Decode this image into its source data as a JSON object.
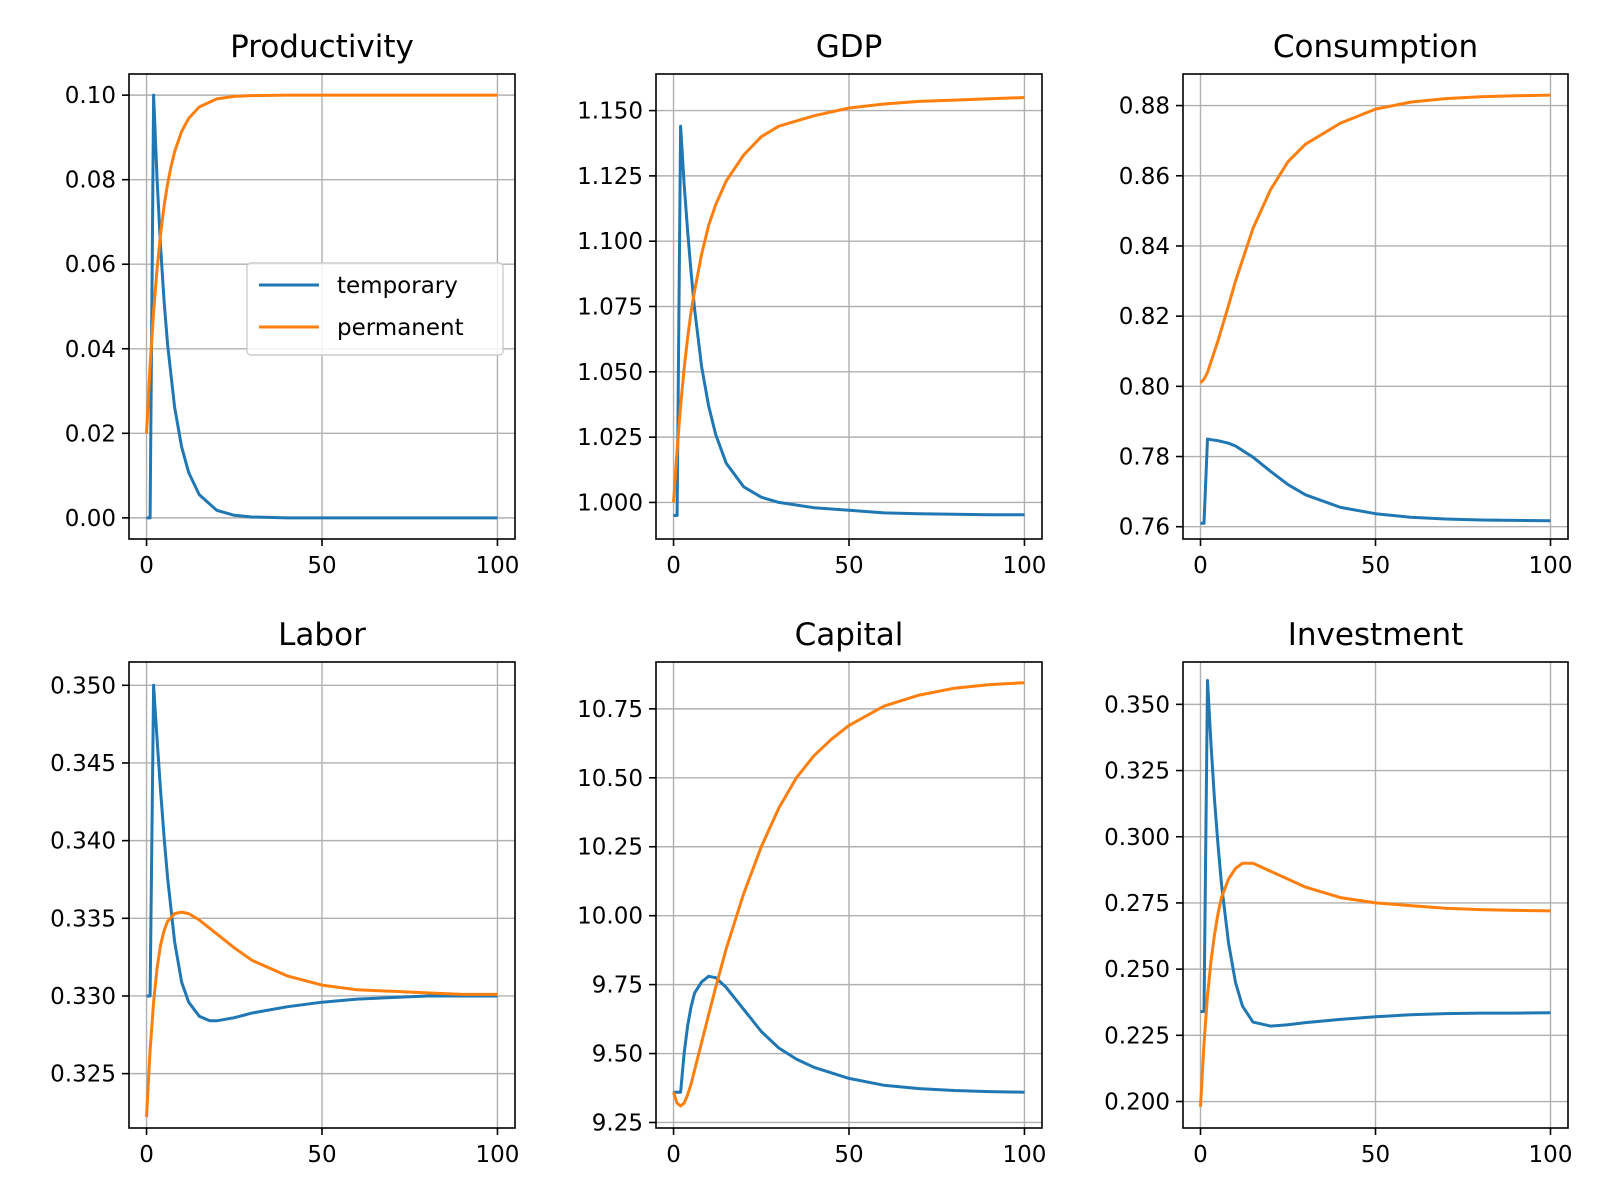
{
  "colors": {
    "temporary": "#1f77b4",
    "permanent": "#ff7f0e",
    "grid": "#b0b0b0"
  },
  "chart_data": [
    {
      "type": "line",
      "title": "Productivity",
      "xlim": [
        -5,
        105
      ],
      "ylim": [
        -0.005,
        0.105
      ],
      "xticks": [
        0,
        50,
        100
      ],
      "yticks": [
        0.0,
        0.02,
        0.04,
        0.06,
        0.08,
        0.1
      ],
      "ytick_labels": [
        "0.00",
        "0.02",
        "0.04",
        "0.06",
        "0.08",
        "0.10"
      ],
      "grid": true,
      "legend": {
        "location": "center-right",
        "entries": [
          "temporary",
          "permanent"
        ]
      },
      "series": [
        {
          "name": "temporary",
          "x": [
            0,
            1,
            2,
            3,
            4,
            5,
            6,
            8,
            10,
            12,
            15,
            20,
            25,
            30,
            40,
            50,
            60,
            70,
            80,
            90,
            100
          ],
          "y": [
            0.0,
            0.0,
            0.1,
            0.08,
            0.064,
            0.0512,
            0.041,
            0.0262,
            0.0168,
            0.0107,
            0.0055,
            0.0018,
            0.0006,
            0.0002,
            0.0,
            0.0,
            0.0,
            0.0,
            0.0,
            0.0,
            0.0
          ]
        },
        {
          "name": "permanent",
          "x": [
            0,
            1,
            2,
            3,
            4,
            5,
            6,
            7,
            8,
            10,
            12,
            15,
            20,
            25,
            30,
            40,
            50,
            60,
            70,
            80,
            90,
            100
          ],
          "y": [
            0.02,
            0.036,
            0.0488,
            0.059,
            0.0672,
            0.0738,
            0.079,
            0.0832,
            0.0866,
            0.0914,
            0.0945,
            0.0972,
            0.0991,
            0.0997,
            0.0999,
            0.1,
            0.1,
            0.1,
            0.1,
            0.1,
            0.1,
            0.1
          ]
        }
      ]
    },
    {
      "type": "line",
      "title": "GDP",
      "xlim": [
        -5,
        105
      ],
      "ylim": [
        0.986,
        1.164
      ],
      "xticks": [
        0,
        50,
        100
      ],
      "yticks": [
        1.0,
        1.025,
        1.05,
        1.075,
        1.1,
        1.125,
        1.15
      ],
      "ytick_labels": [
        "1.000",
        "1.025",
        "1.050",
        "1.075",
        "1.100",
        "1.125",
        "1.150"
      ],
      "grid": true,
      "series": [
        {
          "name": "temporary",
          "x": [
            0,
            1,
            2,
            3,
            4,
            5,
            6,
            8,
            10,
            12,
            15,
            20,
            25,
            30,
            40,
            50,
            60,
            70,
            80,
            90,
            100
          ],
          "y": [
            0.995,
            0.995,
            1.144,
            1.122,
            1.104,
            1.088,
            1.074,
            1.052,
            1.037,
            1.026,
            1.015,
            1.006,
            1.002,
            1.0,
            0.998,
            0.997,
            0.996,
            0.9957,
            0.9955,
            0.9953,
            0.9953
          ]
        },
        {
          "name": "permanent",
          "x": [
            0,
            1,
            2,
            3,
            4,
            5,
            6,
            8,
            10,
            12,
            15,
            20,
            25,
            30,
            40,
            50,
            60,
            70,
            80,
            90,
            100
          ],
          "y": [
            1.0,
            1.02,
            1.037,
            1.051,
            1.063,
            1.073,
            1.081,
            1.095,
            1.106,
            1.114,
            1.123,
            1.133,
            1.14,
            1.144,
            1.148,
            1.151,
            1.1525,
            1.1535,
            1.154,
            1.1545,
            1.155
          ]
        }
      ]
    },
    {
      "type": "line",
      "title": "Consumption",
      "xlim": [
        -5,
        105
      ],
      "ylim": [
        0.7565,
        0.889
      ],
      "xticks": [
        0,
        50,
        100
      ],
      "yticks": [
        0.76,
        0.78,
        0.8,
        0.82,
        0.84,
        0.86,
        0.88
      ],
      "ytick_labels": [
        "0.76",
        "0.78",
        "0.80",
        "0.82",
        "0.84",
        "0.86",
        "0.88"
      ],
      "grid": true,
      "series": [
        {
          "name": "temporary",
          "x": [
            0,
            1,
            2,
            3,
            5,
            8,
            10,
            15,
            20,
            25,
            30,
            40,
            50,
            60,
            70,
            80,
            90,
            100
          ],
          "y": [
            0.761,
            0.761,
            0.785,
            0.7848,
            0.7845,
            0.7838,
            0.783,
            0.7798,
            0.7758,
            0.772,
            0.7691,
            0.7655,
            0.7637,
            0.7627,
            0.7622,
            0.7619,
            0.7618,
            0.7617
          ]
        },
        {
          "name": "permanent",
          "x": [
            0,
            1,
            2,
            3,
            5,
            8,
            10,
            15,
            20,
            25,
            30,
            40,
            50,
            60,
            70,
            80,
            90,
            100
          ],
          "y": [
            0.801,
            0.802,
            0.804,
            0.807,
            0.813,
            0.823,
            0.83,
            0.845,
            0.856,
            0.864,
            0.869,
            0.875,
            0.879,
            0.881,
            0.882,
            0.8825,
            0.8828,
            0.883
          ]
        }
      ]
    },
    {
      "type": "line",
      "title": "Labor",
      "xlim": [
        -5,
        105
      ],
      "ylim": [
        0.3215,
        0.3515
      ],
      "xticks": [
        0,
        50,
        100
      ],
      "yticks": [
        0.325,
        0.33,
        0.335,
        0.34,
        0.345,
        0.35
      ],
      "ytick_labels": [
        "0.325",
        "0.330",
        "0.335",
        "0.340",
        "0.345",
        "0.350"
      ],
      "grid": true,
      "series": [
        {
          "name": "temporary",
          "x": [
            0,
            1,
            2,
            3,
            4,
            5,
            6,
            8,
            10,
            12,
            15,
            18,
            20,
            25,
            30,
            40,
            50,
            60,
            70,
            80,
            90,
            100
          ],
          "y": [
            0.33,
            0.33,
            0.35,
            0.3465,
            0.3432,
            0.3402,
            0.3376,
            0.3335,
            0.3309,
            0.3296,
            0.3287,
            0.3284,
            0.3284,
            0.3286,
            0.3289,
            0.3293,
            0.3296,
            0.3298,
            0.3299,
            0.33,
            0.33,
            0.33
          ]
        },
        {
          "name": "permanent",
          "x": [
            0,
            1,
            2,
            3,
            4,
            5,
            6,
            8,
            10,
            12,
            15,
            20,
            25,
            30,
            40,
            50,
            60,
            70,
            80,
            90,
            100
          ],
          "y": [
            0.3222,
            0.3265,
            0.3296,
            0.3318,
            0.3333,
            0.3342,
            0.3348,
            0.3353,
            0.3354,
            0.3353,
            0.3349,
            0.334,
            0.3331,
            0.3323,
            0.3313,
            0.3307,
            0.3304,
            0.3303,
            0.3302,
            0.3301,
            0.3301
          ]
        }
      ]
    },
    {
      "type": "line",
      "title": "Capital",
      "xlim": [
        -5,
        105
      ],
      "ylim": [
        9.23,
        10.92
      ],
      "xticks": [
        0,
        50,
        100
      ],
      "yticks": [
        9.25,
        9.5,
        9.75,
        10.0,
        10.25,
        10.5,
        10.75
      ],
      "ytick_labels": [
        "9.25",
        "9.50",
        "9.75",
        "10.00",
        "10.25",
        "10.50",
        "10.75"
      ],
      "grid": true,
      "series": [
        {
          "name": "temporary",
          "x": [
            0,
            1,
            2,
            3,
            4,
            5,
            6,
            8,
            10,
            12,
            15,
            20,
            25,
            30,
            35,
            40,
            50,
            60,
            70,
            80,
            90,
            100
          ],
          "y": [
            9.36,
            9.36,
            9.36,
            9.5,
            9.6,
            9.67,
            9.72,
            9.76,
            9.78,
            9.775,
            9.74,
            9.66,
            9.58,
            9.52,
            9.48,
            9.45,
            9.41,
            9.385,
            9.373,
            9.366,
            9.362,
            9.36
          ]
        },
        {
          "name": "permanent",
          "x": [
            0,
            1,
            2,
            3,
            4,
            5,
            6,
            8,
            10,
            12,
            15,
            20,
            25,
            30,
            35,
            40,
            45,
            50,
            60,
            70,
            80,
            90,
            100
          ],
          "y": [
            9.36,
            9.32,
            9.31,
            9.32,
            9.35,
            9.39,
            9.44,
            9.54,
            9.64,
            9.74,
            9.88,
            10.08,
            10.25,
            10.39,
            10.5,
            10.58,
            10.64,
            10.69,
            10.76,
            10.8,
            10.825,
            10.838,
            10.845
          ]
        }
      ]
    },
    {
      "type": "line",
      "title": "Investment",
      "xlim": [
        -5,
        105
      ],
      "ylim": [
        0.19,
        0.366
      ],
      "xticks": [
        0,
        50,
        100
      ],
      "yticks": [
        0.2,
        0.225,
        0.25,
        0.275,
        0.3,
        0.325,
        0.35
      ],
      "ytick_labels": [
        "0.200",
        "0.225",
        "0.250",
        "0.275",
        "0.300",
        "0.325",
        "0.350"
      ],
      "grid": true,
      "series": [
        {
          "name": "temporary",
          "x": [
            0,
            1,
            2,
            3,
            4,
            5,
            6,
            8,
            10,
            12,
            15,
            20,
            25,
            30,
            40,
            50,
            60,
            70,
            80,
            90,
            100
          ],
          "y": [
            0.234,
            0.234,
            0.359,
            0.335,
            0.314,
            0.297,
            0.282,
            0.26,
            0.245,
            0.236,
            0.23,
            0.2285,
            0.229,
            0.2298,
            0.231,
            0.232,
            0.2328,
            0.2332,
            0.2334,
            0.2334,
            0.2335
          ]
        },
        {
          "name": "permanent",
          "x": [
            0,
            1,
            2,
            3,
            4,
            5,
            6,
            8,
            10,
            12,
            15,
            20,
            25,
            30,
            40,
            50,
            60,
            70,
            80,
            90,
            100
          ],
          "y": [
            0.198,
            0.222,
            0.24,
            0.253,
            0.263,
            0.271,
            0.277,
            0.284,
            0.288,
            0.29,
            0.29,
            0.287,
            0.284,
            0.281,
            0.277,
            0.275,
            0.274,
            0.273,
            0.2725,
            0.2722,
            0.272
          ]
        }
      ]
    }
  ]
}
